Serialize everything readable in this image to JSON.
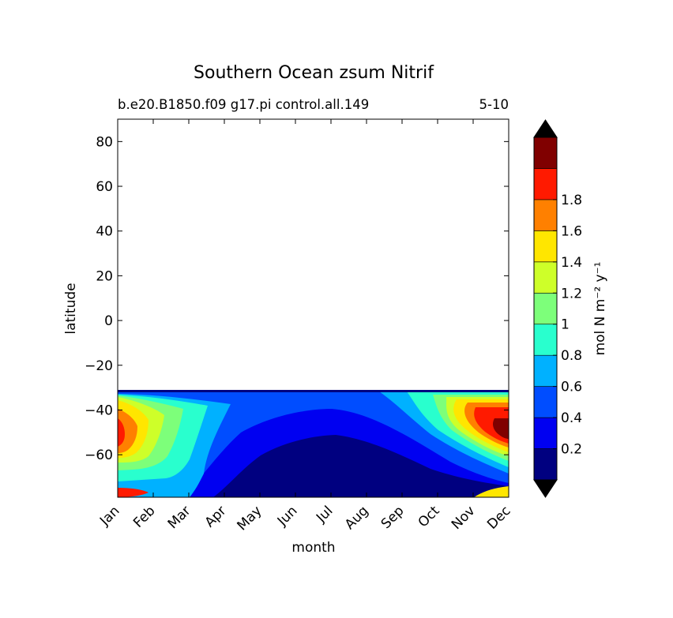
{
  "chart_data": {
    "type": "heatmap",
    "title": "Southern Ocean zsum Nitrif",
    "subtitle_left": "b.e20.B1850.f09 g17.pi control.all.149",
    "subtitle_right": "5-10",
    "xlabel": "month",
    "ylabel": "latitude",
    "x_ticks": [
      "Jan",
      "Feb",
      "Mar",
      "Apr",
      "May",
      "Jun",
      "Jul",
      "Aug",
      "Sep",
      "Oct",
      "Nov",
      "Dec"
    ],
    "y_ticks": [
      80,
      60,
      40,
      20,
      0,
      -20,
      -40,
      -60
    ],
    "y_tick_labels": [
      "80",
      "60",
      "40",
      "20",
      "0",
      "−20",
      "−40",
      "−60"
    ],
    "ylim": [
      -79,
      90
    ],
    "data_lat_max": -31,
    "colorbar": {
      "label": "mol N m⁻² y⁻¹",
      "levels": [
        0.0,
        0.2,
        0.4,
        0.6,
        0.8,
        1.0,
        1.2,
        1.4,
        1.6,
        1.8,
        2.0
      ],
      "tick_values": [
        0.2,
        0.4,
        0.6,
        0.8,
        1.0,
        1.2,
        1.4,
        1.6,
        1.8
      ],
      "tick_labels": [
        "0.2",
        "0.4",
        "0.6",
        "0.8",
        "1",
        "1.2",
        "1.4",
        "1.6",
        "1.8"
      ],
      "colors": [
        "#000080",
        "#0000f1",
        "#004dff",
        "#00b1ff",
        "#29ffce",
        "#7dff7a",
        "#ceff29",
        "#ffe600",
        "#ff8000",
        "#ff1a00",
        "#800000"
      ],
      "under_color": "#000000",
      "over_color": "#000000"
    }
  }
}
